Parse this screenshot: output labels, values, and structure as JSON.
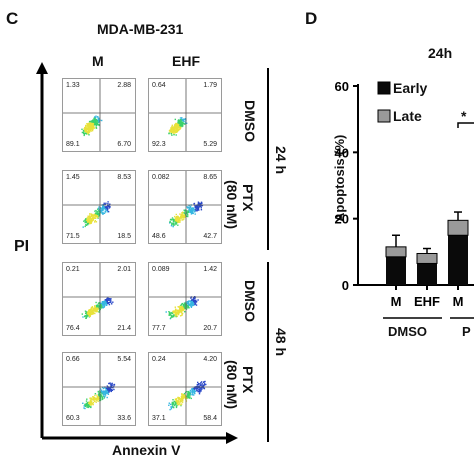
{
  "panel_c": {
    "letter": "C",
    "title": "MDA-MB-231",
    "col_labels": [
      "M",
      "EHF"
    ],
    "y_axis": "PI",
    "x_axis": "Annexin V",
    "row_labels": [
      "DMSO",
      "PTX",
      "(80 nM)",
      "DMSO",
      "PTX",
      "(80 nM)"
    ],
    "time_labels": [
      "24 h",
      "48 h"
    ],
    "plots": [
      {
        "tl": "1.33",
        "tr": "2.88",
        "bl": "89.1",
        "br": "6.70"
      },
      {
        "tl": "0.64",
        "tr": "1.79",
        "bl": "92.3",
        "br": "5.29"
      },
      {
        "tl": "1.45",
        "tr": "8.53",
        "bl": "71.5",
        "br": "18.5"
      },
      {
        "tl": "0.082",
        "tr": "8.65",
        "bl": "48.6",
        "br": "42.7"
      },
      {
        "tl": "0.21",
        "tr": "2.01",
        "bl": "76.4",
        "br": "21.4"
      },
      {
        "tl": "0.089",
        "tr": "1.42",
        "bl": "77.7",
        "br": "20.7"
      },
      {
        "tl": "0.66",
        "tr": "5.54",
        "bl": "60.3",
        "br": "33.6"
      },
      {
        "tl": "0.24",
        "tr": "4.20",
        "bl": "37.1",
        "br": "58.4"
      }
    ]
  },
  "panel_d": {
    "letter": "D",
    "title": "24h",
    "ylabel": "Apoptosis (%)",
    "yticks": [
      "0",
      "20",
      "40",
      "60"
    ],
    "legend": [
      "Early",
      "Late"
    ],
    "categories": [
      "M",
      "EHF",
      "M"
    ],
    "group_label": "DMSO",
    "group_label_partial": "P",
    "sig": "*",
    "colors": {
      "early": "#0a0a0a",
      "late": "#9a9a9a"
    }
  },
  "chart_data": {
    "type": "bar",
    "title": "24h",
    "ylabel": "Apoptosis (%)",
    "ylim": [
      0,
      60
    ],
    "categories": [
      "M",
      "EHF",
      "M"
    ],
    "series": [
      {
        "name": "Early",
        "values": [
          8.5,
          6.5,
          15
        ]
      },
      {
        "name": "Late",
        "values": [
          3,
          3,
          4.5
        ]
      }
    ],
    "errors": [
      3.5,
      1.5,
      2.5
    ]
  }
}
